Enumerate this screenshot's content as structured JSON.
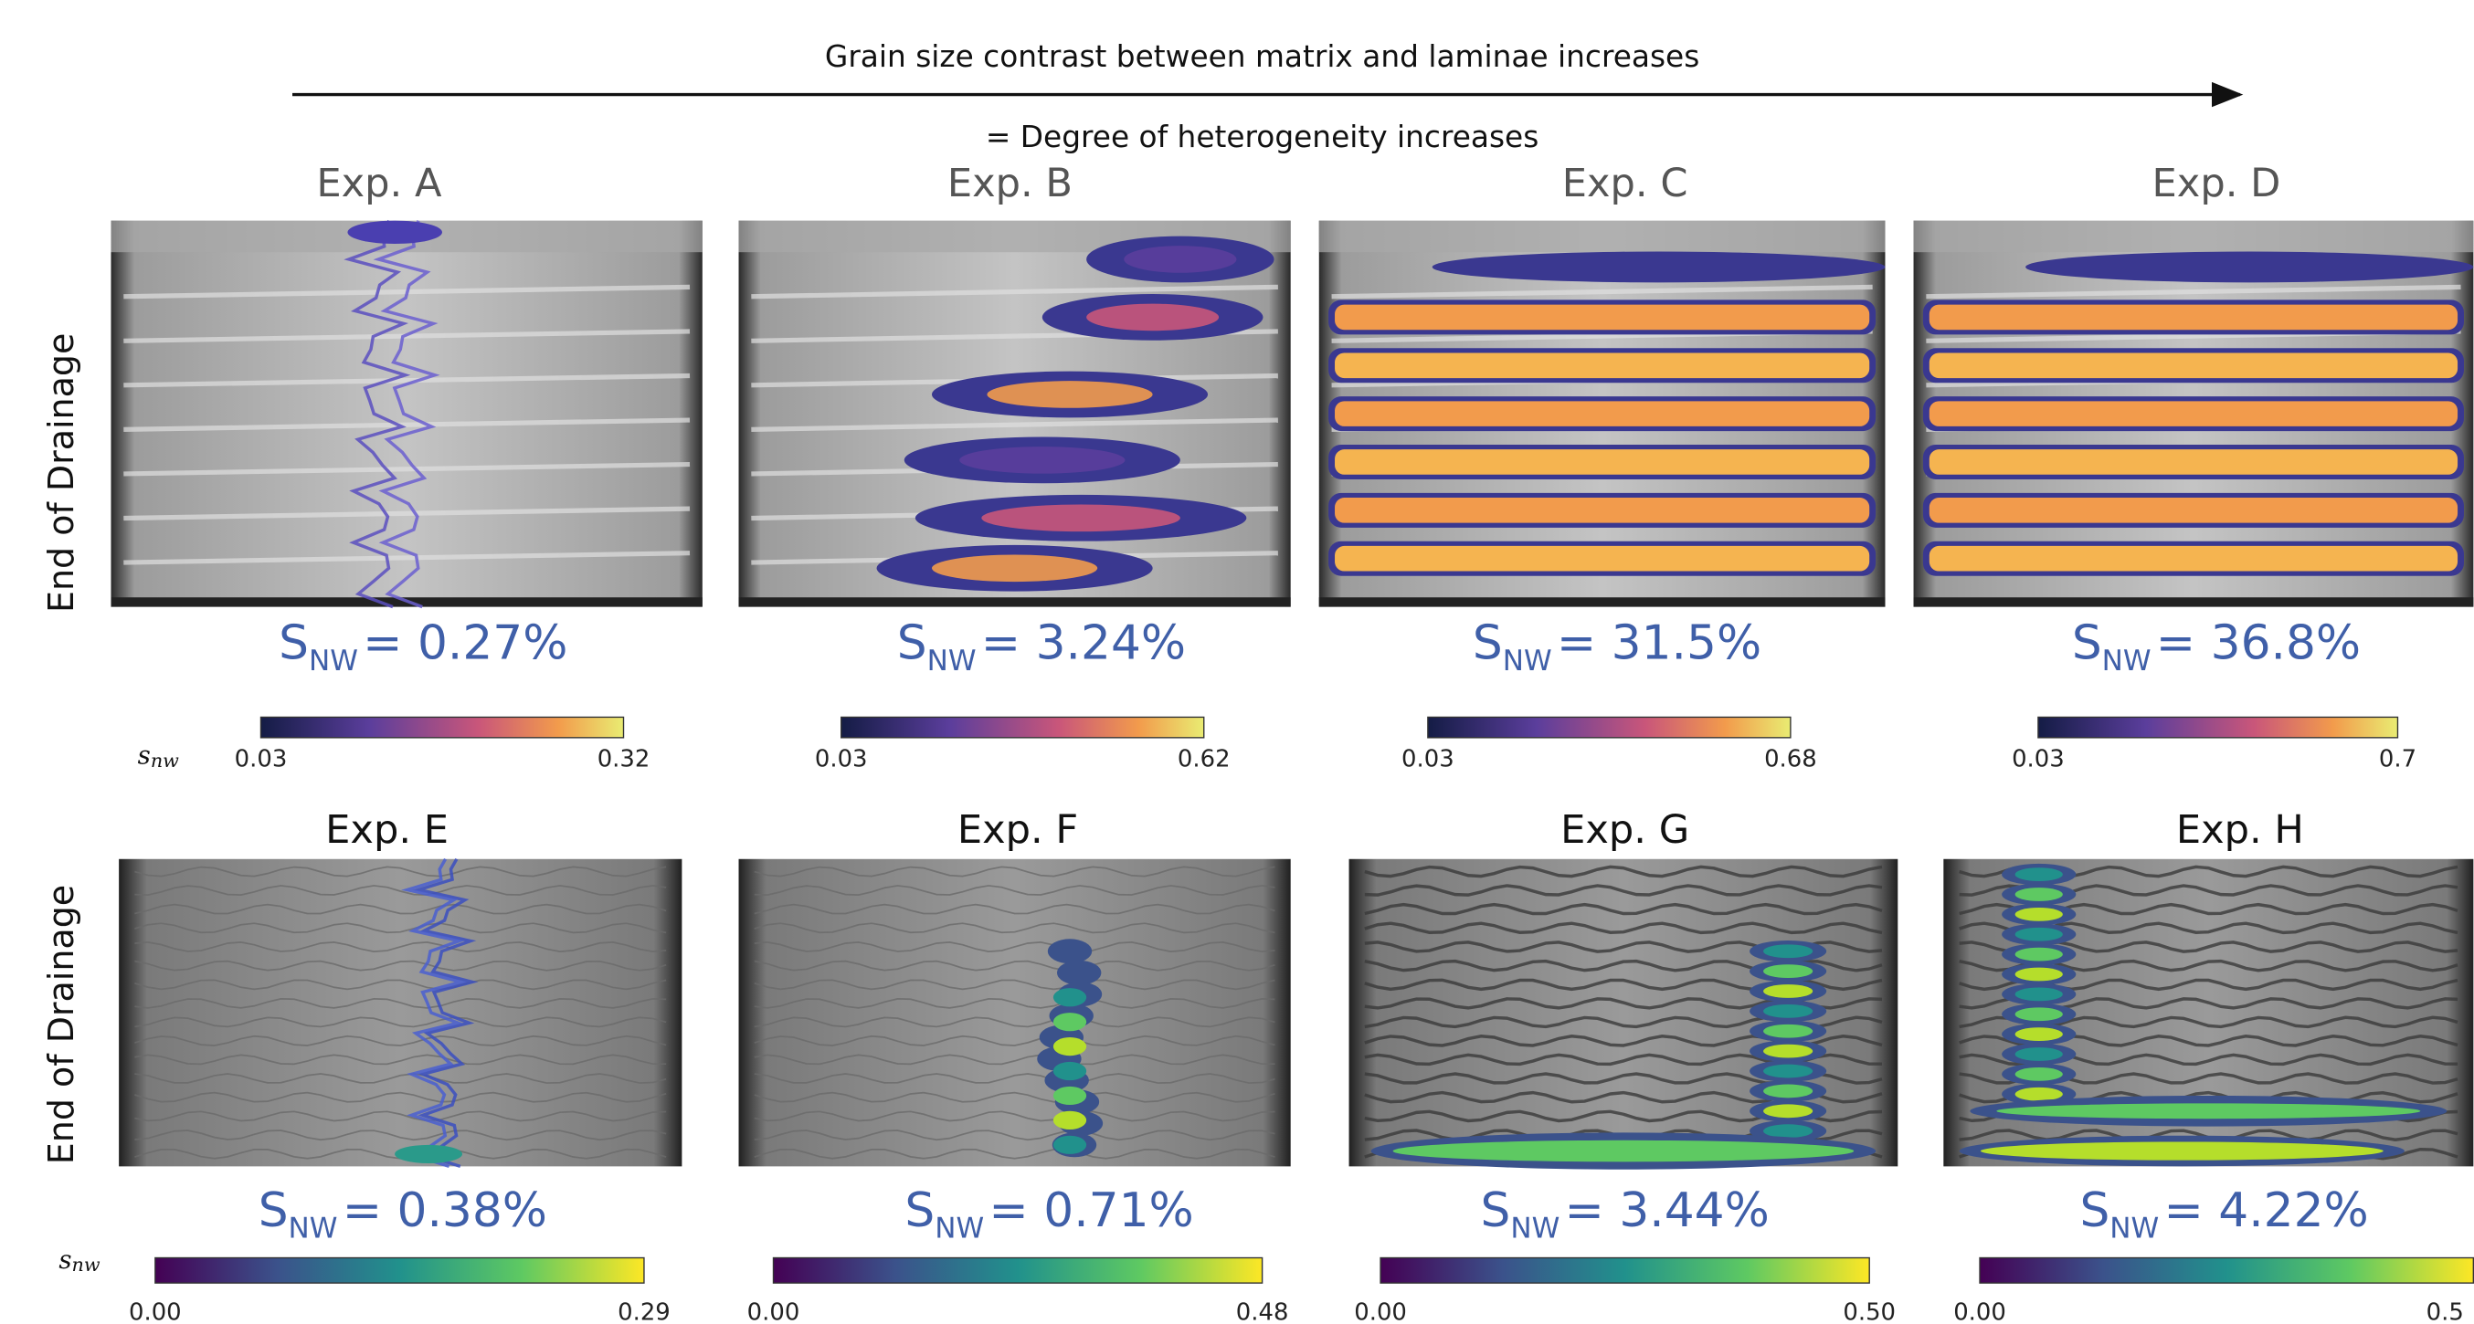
{
  "header": {
    "arrow_text": "Grain size contrast between matrix and laminae increases",
    "subtitle": "= Degree of heterogeneity increases"
  },
  "rows": [
    {
      "label": "End of Drainage",
      "colorbar_label": {
        "symbol": "s",
        "subscript": "nw"
      },
      "panels": [
        {
          "title": "Exp. A",
          "saturation": {
            "symbol": "S",
            "subscript": "NW",
            "value": "= 0.27%"
          },
          "colorbar": {
            "min": "0.03",
            "max": "0.32"
          }
        },
        {
          "title": "Exp. B",
          "saturation": {
            "symbol": "S",
            "subscript": "NW",
            "value": "= 3.24%"
          },
          "colorbar": {
            "min": "0.03",
            "max": "0.62"
          }
        },
        {
          "title": "Exp. C",
          "saturation": {
            "symbol": "S",
            "subscript": "NW",
            "value": "= 31.5%"
          },
          "colorbar": {
            "min": "0.03",
            "max": "0.68"
          }
        },
        {
          "title": "Exp. D",
          "saturation": {
            "symbol": "S",
            "subscript": "NW",
            "value": "= 36.8%"
          },
          "colorbar": {
            "min": "0.03",
            "max": "0.7"
          }
        }
      ]
    },
    {
      "label": "End of Drainage",
      "colorbar_label": {
        "symbol": "s",
        "subscript": "nw"
      },
      "panels": [
        {
          "title": "Exp. E",
          "saturation": {
            "symbol": "S",
            "subscript": "NW",
            "value": "= 0.38%"
          },
          "colorbar": {
            "min": "0.00",
            "max": "0.29"
          }
        },
        {
          "title": "Exp. F",
          "saturation": {
            "symbol": "S",
            "subscript": "NW",
            "value": "= 0.71%"
          },
          "colorbar": {
            "min": "0.00",
            "max": "0.48"
          }
        },
        {
          "title": "Exp. G",
          "saturation": {
            "symbol": "S",
            "subscript": "NW",
            "value": "= 3.44%"
          },
          "colorbar": {
            "min": "0.00",
            "max": "0.50"
          }
        },
        {
          "title": "Exp. H",
          "saturation": {
            "symbol": "S",
            "subscript": "NW",
            "value": "= 4.22%"
          },
          "colorbar": {
            "min": "0.00",
            "max": "0.5"
          }
        }
      ]
    }
  ]
}
